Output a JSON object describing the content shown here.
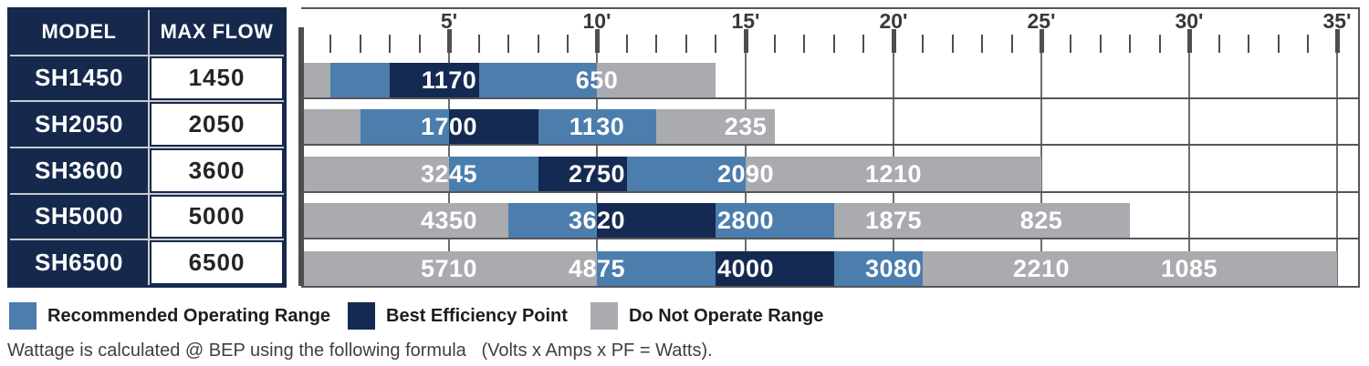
{
  "table": {
    "col1_header": "MODEL",
    "col2_header": "MAX FLOW"
  },
  "chart_data": {
    "type": "bar",
    "subtype": "horizontal-stacked-range",
    "x_unit": "feet of head",
    "x_range_ft": [
      0,
      35.6
    ],
    "x_minor_tick_step_ft": 1,
    "x_ticks": [
      {
        "ft": 5,
        "label": "5'"
      },
      {
        "ft": 10,
        "label": "10'"
      },
      {
        "ft": 15,
        "label": "15'"
      },
      {
        "ft": 20,
        "label": "20'"
      },
      {
        "ft": 25,
        "label": "25'"
      },
      {
        "ft": 30,
        "label": "30'"
      },
      {
        "ft": 35,
        "label": "35'"
      }
    ],
    "legend_position": "bottom",
    "grid": true,
    "rows": [
      {
        "model": "SH1450",
        "max_flow": "1450",
        "segments": [
          {
            "range": "do_not_operate",
            "from_ft": 0,
            "to_ft": 1
          },
          {
            "range": "recommended",
            "from_ft": 1,
            "to_ft": 3
          },
          {
            "range": "best_efficiency",
            "from_ft": 3,
            "to_ft": 6
          },
          {
            "range": "recommended",
            "from_ft": 6,
            "to_ft": 10
          },
          {
            "range": "do_not_operate",
            "from_ft": 10,
            "to_ft": 14
          }
        ],
        "flow_labels": [
          {
            "value": "1170",
            "at_ft": 5
          },
          {
            "value": "650",
            "at_ft": 10
          }
        ]
      },
      {
        "model": "SH2050",
        "max_flow": "2050",
        "segments": [
          {
            "range": "do_not_operate",
            "from_ft": 0,
            "to_ft": 2
          },
          {
            "range": "recommended",
            "from_ft": 2,
            "to_ft": 5
          },
          {
            "range": "best_efficiency",
            "from_ft": 5,
            "to_ft": 8
          },
          {
            "range": "recommended",
            "from_ft": 8,
            "to_ft": 12
          },
          {
            "range": "do_not_operate",
            "from_ft": 12,
            "to_ft": 16
          }
        ],
        "flow_labels": [
          {
            "value": "1700",
            "at_ft": 5
          },
          {
            "value": "1130",
            "at_ft": 10
          },
          {
            "value": "235",
            "at_ft": 15
          }
        ]
      },
      {
        "model": "SH3600",
        "max_flow": "3600",
        "segments": [
          {
            "range": "do_not_operate",
            "from_ft": 0,
            "to_ft": 5
          },
          {
            "range": "recommended",
            "from_ft": 5,
            "to_ft": 8
          },
          {
            "range": "best_efficiency",
            "from_ft": 8,
            "to_ft": 11
          },
          {
            "range": "recommended",
            "from_ft": 11,
            "to_ft": 15
          },
          {
            "range": "do_not_operate",
            "from_ft": 15,
            "to_ft": 25
          }
        ],
        "flow_labels": [
          {
            "value": "3245",
            "at_ft": 5
          },
          {
            "value": "2750",
            "at_ft": 10
          },
          {
            "value": "2090",
            "at_ft": 15
          },
          {
            "value": "1210",
            "at_ft": 20
          }
        ]
      },
      {
        "model": "SH5000",
        "max_flow": "5000",
        "segments": [
          {
            "range": "do_not_operate",
            "from_ft": 0,
            "to_ft": 7
          },
          {
            "range": "recommended",
            "from_ft": 7,
            "to_ft": 10
          },
          {
            "range": "best_efficiency",
            "from_ft": 10,
            "to_ft": 14
          },
          {
            "range": "recommended",
            "from_ft": 14,
            "to_ft": 18
          },
          {
            "range": "do_not_operate",
            "from_ft": 18,
            "to_ft": 28
          }
        ],
        "flow_labels": [
          {
            "value": "4350",
            "at_ft": 5
          },
          {
            "value": "3620",
            "at_ft": 10
          },
          {
            "value": "2800",
            "at_ft": 15
          },
          {
            "value": "1875",
            "at_ft": 20
          },
          {
            "value": "825",
            "at_ft": 25
          }
        ]
      },
      {
        "model": "SH6500",
        "max_flow": "6500",
        "segments": [
          {
            "range": "do_not_operate",
            "from_ft": 0,
            "to_ft": 10
          },
          {
            "range": "recommended",
            "from_ft": 10,
            "to_ft": 14
          },
          {
            "range": "best_efficiency",
            "from_ft": 14,
            "to_ft": 18
          },
          {
            "range": "recommended",
            "from_ft": 18,
            "to_ft": 21
          },
          {
            "range": "do_not_operate",
            "from_ft": 21,
            "to_ft": 35
          }
        ],
        "flow_labels": [
          {
            "value": "5710",
            "at_ft": 5
          },
          {
            "value": "4875",
            "at_ft": 10
          },
          {
            "value": "4000",
            "at_ft": 15
          },
          {
            "value": "3080",
            "at_ft": 20
          },
          {
            "value": "2210",
            "at_ft": 25
          },
          {
            "value": "1085",
            "at_ft": 30
          }
        ]
      }
    ]
  },
  "legend": {
    "items": [
      {
        "key": "recommended",
        "label": "Recommended Operating Range"
      },
      {
        "key": "best_efficiency",
        "label": "Best Efficiency Point"
      },
      {
        "key": "do_not_operate",
        "label": "Do Not Operate Range"
      }
    ]
  },
  "footer": {
    "text": "Wattage is calculated @ BEP using the following formula   (Volts x Amps x PF = Watts)."
  },
  "colors": {
    "recommended": "#4b7dad",
    "best_efficiency": "#152a52",
    "do_not_operate": "#a9abae",
    "table_navy": "#16294d",
    "axis_line": "#4d4e50",
    "gridline": "#6b6c6e"
  }
}
